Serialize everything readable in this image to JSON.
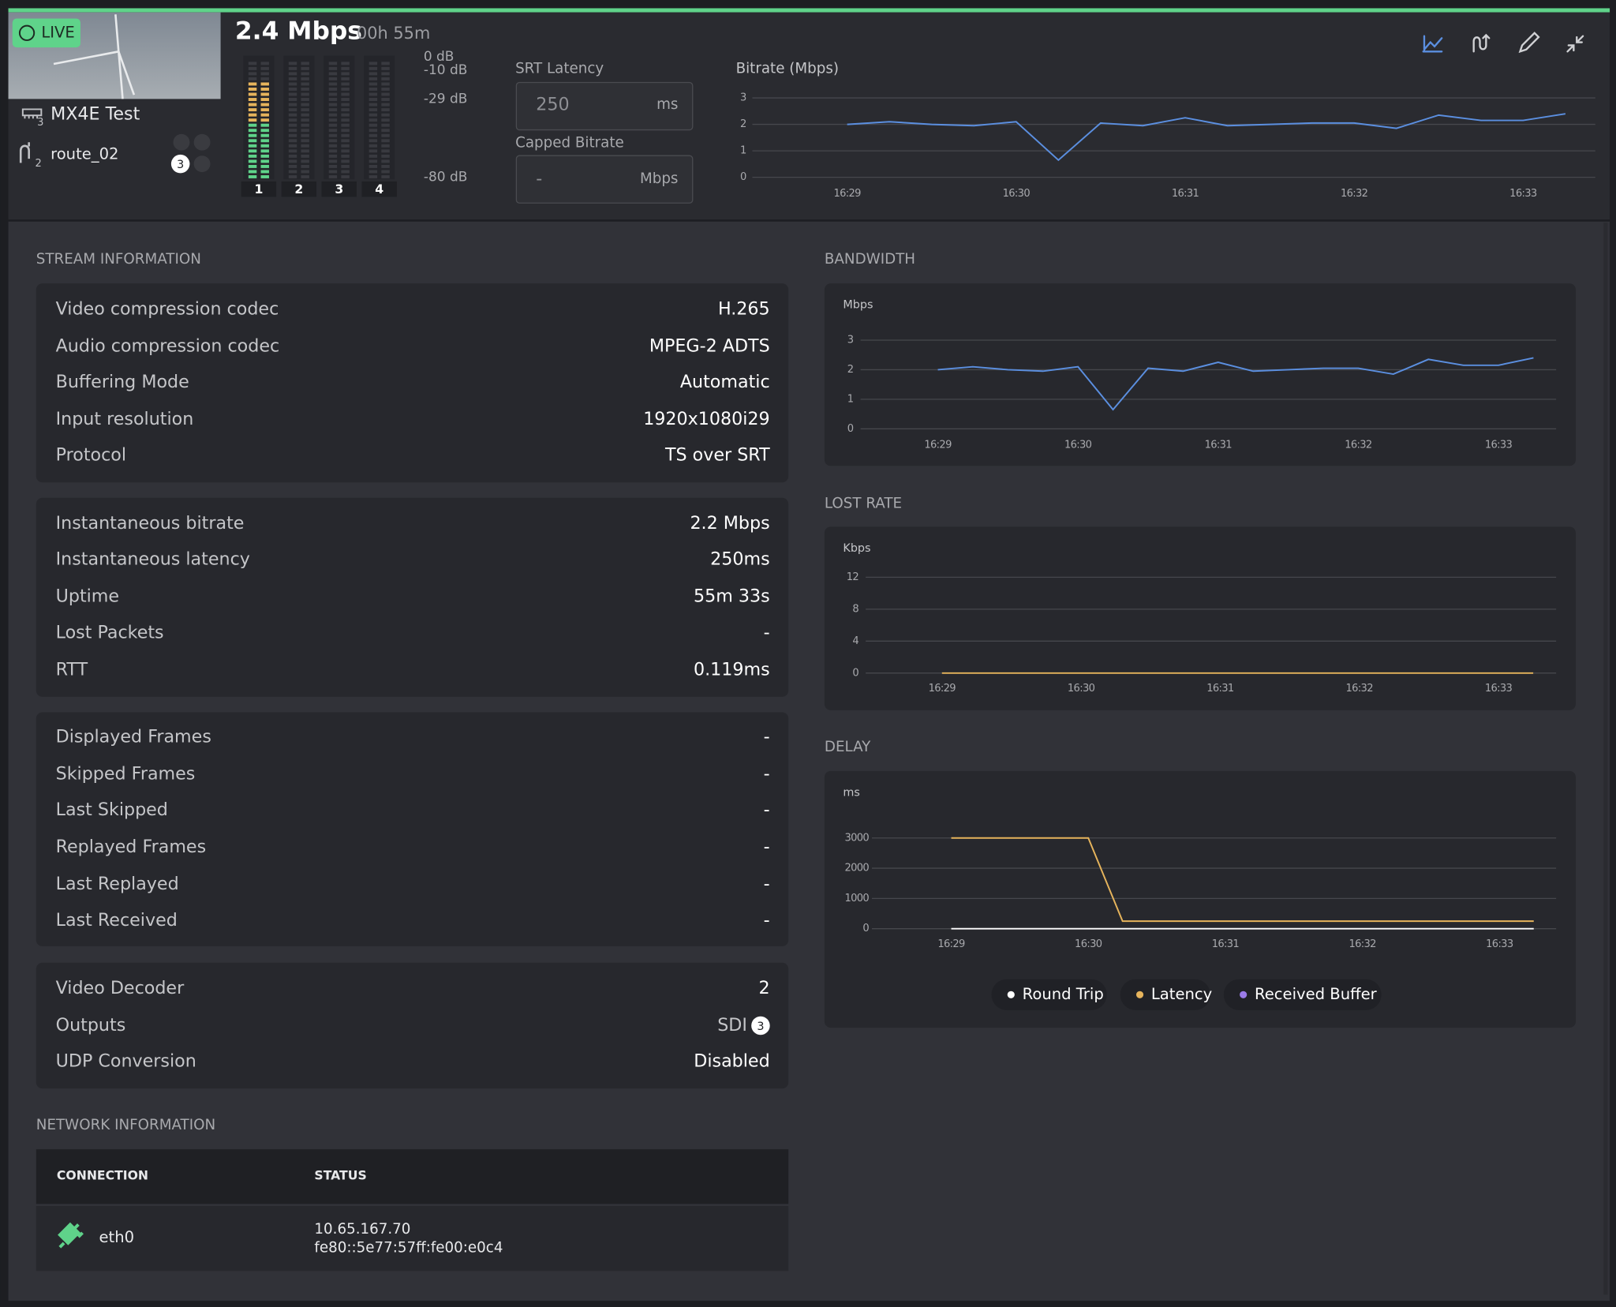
{
  "header": {
    "live": "LIVE",
    "bitrate": "2.4 Mbps",
    "duration": "00h 55m",
    "device": "MX4E Test",
    "device_sub": "3",
    "route": "route_02",
    "route_sub": "2",
    "route_badge": "3",
    "meters": {
      "scale": [
        {
          "value": 0,
          "label": "0 dB"
        },
        {
          "value": -10,
          "label": "-10 dB"
        },
        {
          "value": -29,
          "label": "-29 dB"
        },
        {
          "value": -80,
          "label": "-80 dB"
        }
      ],
      "channels": [
        {
          "label": "1",
          "level": -15
        },
        {
          "label": "2",
          "level": -80
        },
        {
          "label": "3",
          "level": -80
        },
        {
          "label": "4",
          "level": -80
        }
      ]
    },
    "srt_latency": {
      "label": "SRT Latency",
      "value": "250",
      "unit": "ms"
    },
    "capped_bitrate": {
      "label": "Capped Bitrate",
      "value": "-",
      "unit": "Mbps"
    }
  },
  "mini_chart": {
    "type": "line",
    "title": "Bitrate (Mbps)",
    "categories": [
      "16:29",
      null,
      null,
      null,
      "16:30",
      null,
      null,
      null,
      "16:31",
      null,
      null,
      null,
      "16:32",
      null,
      null,
      null,
      "16:33",
      null
    ],
    "series": [
      {
        "color": "#5b8fe0",
        "values": [
          2.0,
          2.1,
          2.0,
          1.95,
          2.1,
          0.65,
          2.05,
          1.95,
          2.25,
          1.95,
          2.0,
          2.05,
          2.05,
          1.85,
          2.35,
          2.15,
          2.15,
          2.4
        ]
      }
    ],
    "ylim": [
      0,
      3
    ],
    "yticks": [
      0,
      1,
      2,
      3
    ],
    "grid": true
  },
  "stream_information": {
    "title": "STREAM INFORMATION",
    "groups": [
      [
        {
          "label": "Video compression codec",
          "value": "H.265"
        },
        {
          "label": "Audio compression codec",
          "value": "MPEG-2 ADTS"
        },
        {
          "label": "Buffering Mode",
          "value": "Automatic"
        },
        {
          "label": "Input resolution",
          "value": "1920x1080i29"
        },
        {
          "label": "Protocol",
          "value": "TS over SRT"
        }
      ],
      [
        {
          "label": "Instantaneous bitrate",
          "value": "2.2 Mbps"
        },
        {
          "label": "Instantaneous latency",
          "value": "250ms"
        },
        {
          "label": "Uptime",
          "value": "55m 33s"
        },
        {
          "label": "Lost Packets",
          "value": "-"
        },
        {
          "label": "RTT",
          "value": "0.119ms"
        }
      ],
      [
        {
          "label": "Displayed Frames",
          "value": "-"
        },
        {
          "label": "Skipped Frames",
          "value": "-"
        },
        {
          "label": "Last Skipped",
          "value": "-"
        },
        {
          "label": "Replayed Frames",
          "value": "-"
        },
        {
          "label": "Last Replayed",
          "value": "-"
        },
        {
          "label": "Last Received",
          "value": "-"
        }
      ],
      [
        {
          "label": "Video Decoder",
          "value": "2"
        },
        {
          "label": "Outputs",
          "value": "SDI",
          "badge": "3"
        },
        {
          "label": "UDP Conversion",
          "value": "Disabled"
        }
      ]
    ]
  },
  "network_information": {
    "title": "NETWORK INFORMATION",
    "columns": [
      "CONNECTION",
      "STATUS"
    ],
    "rows": [
      {
        "name": "eth0",
        "status": [
          "10.65.167.70",
          "fe80::5e77:57ff:fe00:e0c4"
        ]
      }
    ]
  },
  "bandwidth": {
    "type": "line",
    "title": "BANDWIDTH",
    "y_label": "Mbps",
    "categories": [
      "16:29",
      null,
      null,
      null,
      "16:30",
      null,
      null,
      null,
      "16:31",
      null,
      null,
      null,
      "16:32",
      null,
      null,
      null,
      "16:33",
      null
    ],
    "series": [
      {
        "color": "#5b8fe0",
        "values": [
          2.0,
          2.1,
          2.0,
          1.95,
          2.1,
          0.65,
          2.05,
          1.95,
          2.25,
          1.95,
          2.0,
          2.05,
          2.05,
          1.85,
          2.35,
          2.15,
          2.15,
          2.4
        ]
      }
    ],
    "ylim": [
      0,
      3
    ],
    "yticks": [
      0,
      1,
      2,
      3
    ],
    "grid": true
  },
  "lost_rate": {
    "type": "line",
    "title": "LOST RATE",
    "y_label": "Kbps",
    "categories": [
      "16:29",
      null,
      null,
      null,
      "16:30",
      null,
      null,
      null,
      "16:31",
      null,
      null,
      null,
      "16:32",
      null,
      null,
      null,
      "16:33",
      null
    ],
    "series": [
      {
        "color": "#e6b45c",
        "values": [
          0,
          0,
          0,
          0,
          0,
          0,
          0,
          0,
          0,
          0,
          0,
          0,
          0,
          0,
          0,
          0,
          0,
          0
        ]
      }
    ],
    "ylim": [
      0,
      12
    ],
    "yticks": [
      0,
      4,
      8,
      12
    ],
    "grid": true
  },
  "delay": {
    "type": "line",
    "title": "DELAY",
    "y_label": "ms",
    "categories": [
      "16:29",
      null,
      null,
      null,
      "16:30",
      null,
      null,
      null,
      "16:31",
      null,
      null,
      null,
      "16:32",
      null,
      null,
      null,
      "16:33",
      null
    ],
    "series": [
      {
        "name": "Round Trip",
        "color": "#ffffff",
        "values": [
          0,
          0,
          0,
          0,
          0,
          0,
          0,
          0,
          0,
          0,
          0,
          0,
          0,
          0,
          0,
          0,
          0,
          0
        ]
      },
      {
        "name": "Latency",
        "color": "#e6b45c",
        "values": [
          3000,
          3000,
          3000,
          3000,
          3000,
          250,
          250,
          250,
          250,
          250,
          250,
          250,
          250,
          250,
          250,
          250,
          250,
          250
        ]
      },
      {
        "name": "Received Buffer",
        "color": "#9b7be8",
        "values": [
          null,
          null,
          null,
          null,
          null,
          null,
          null,
          null,
          null,
          null,
          null,
          null,
          null,
          null,
          null,
          null,
          null,
          null
        ]
      }
    ],
    "ylim": [
      0,
      3000
    ],
    "yticks": [
      0,
      1000,
      2000,
      3000
    ],
    "grid": true
  }
}
